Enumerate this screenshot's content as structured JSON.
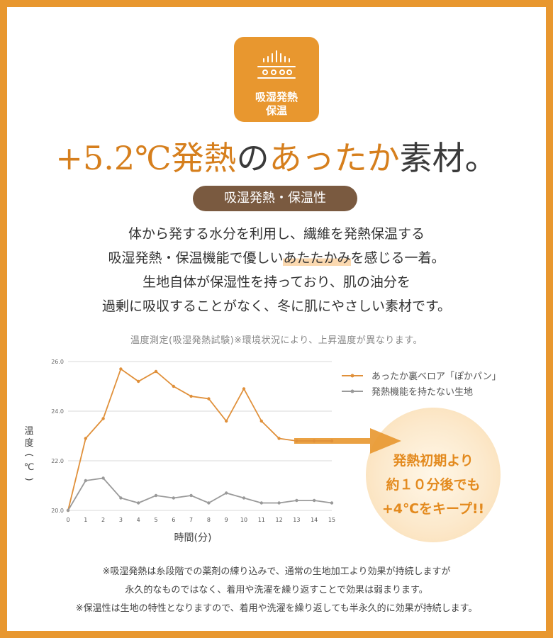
{
  "badge": {
    "line1": "吸湿発熱",
    "line2": "保温",
    "icon": "heat-waves-icon"
  },
  "headline": {
    "part1": "+5.2℃発熱",
    "part2": "の",
    "part3": "あったか",
    "part4": "素材。"
  },
  "pill_label": "吸湿発熱・保温性",
  "description": {
    "line1": "体から発する水分を利用し、繊維を発熱保温する",
    "line2a": "吸湿発熱・保温機能で優しい",
    "line2b": "あたたかみ",
    "line2c": "を感じる一着。",
    "line3": "生地自体が保湿性を持っており、肌の油分を",
    "line4": "過剰に吸収することがなく、冬に肌にやさしい素材です。"
  },
  "chart_caption": "温度測定(吸湿発熱試験)※環境状況により、上昇温度が異なります。",
  "callout": {
    "line1": "発熱初期より",
    "line2": "約１０分後でも",
    "line3": "+4℃をキープ!!"
  },
  "notes": {
    "line1": "※吸湿発熱は糸段階での薬剤の練り込みで、通常の生地加工より効果が持続しますが",
    "line2": "永久的なものではなく、着用や洗濯を繰り返すことで効果は弱まります。",
    "line3": "※保温性は生地の特性となりますので、着用や洗濯を繰り返しても半永久的に効果が持続します。"
  },
  "colors": {
    "accent": "#e8972f",
    "series1": "#e0903a",
    "series2": "#9a9a9a",
    "pill": "#7a5a40"
  },
  "chart_data": {
    "type": "line",
    "x": [
      0,
      1,
      2,
      3,
      4,
      5,
      6,
      7,
      8,
      9,
      10,
      11,
      12,
      13,
      14,
      15
    ],
    "x_ticks": [
      "0",
      "1",
      "2",
      "3",
      "4",
      "5",
      "6",
      "7",
      "8",
      "9",
      "10",
      "11",
      "12",
      "13",
      "14",
      "15"
    ],
    "y_ticks": [
      "20.0",
      "22.0",
      "24.0",
      "26.0"
    ],
    "ylim": [
      20,
      26
    ],
    "xlabel": "時間(分)",
    "ylabel": "温度(℃)",
    "grid": true,
    "legend": "right",
    "series": [
      {
        "name": "あったか裏ベロア「ぽかパン」",
        "color": "#e0903a",
        "values": [
          20.0,
          22.9,
          23.7,
          25.7,
          25.2,
          25.6,
          25.0,
          24.6,
          24.5,
          23.6,
          24.9,
          23.6,
          22.9,
          22.8,
          22.8,
          22.8
        ]
      },
      {
        "name": "発熱機能を持たない生地",
        "color": "#9a9a9a",
        "values": [
          20.0,
          21.2,
          21.3,
          20.5,
          20.3,
          20.6,
          20.5,
          20.6,
          20.3,
          20.7,
          20.5,
          20.3,
          20.3,
          20.4,
          20.4,
          20.3
        ]
      }
    ]
  }
}
